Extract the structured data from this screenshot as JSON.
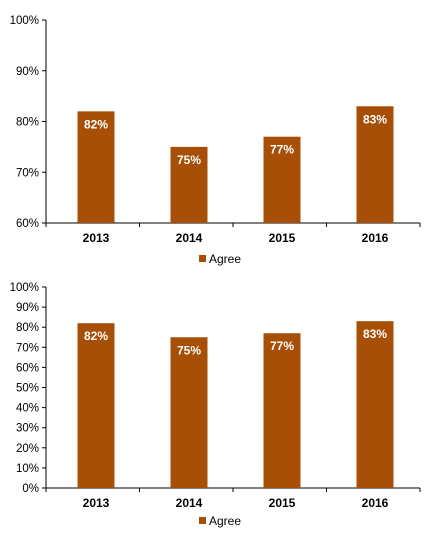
{
  "chart_data": [
    {
      "type": "bar",
      "categories": [
        "2013",
        "2014",
        "2015",
        "2016"
      ],
      "series": [
        {
          "name": "Agree",
          "values": [
            82,
            75,
            77,
            83
          ],
          "labels": [
            "82%",
            "75%",
            "77%",
            "83%"
          ]
        }
      ],
      "ylim": [
        60,
        100
      ],
      "yticks": [
        60,
        70,
        80,
        90,
        100
      ],
      "ytick_labels": [
        "60%",
        "70%",
        "80%",
        "90%",
        "100%"
      ],
      "grid": false,
      "legend_position": "bottom",
      "bar_color": "#a84f07"
    },
    {
      "type": "bar",
      "categories": [
        "2013",
        "2014",
        "2015",
        "2016"
      ],
      "series": [
        {
          "name": "Agree",
          "values": [
            82,
            75,
            77,
            83
          ],
          "labels": [
            "82%",
            "75%",
            "77%",
            "83%"
          ]
        }
      ],
      "ylim": [
        0,
        100
      ],
      "yticks": [
        0,
        10,
        20,
        30,
        40,
        50,
        60,
        70,
        80,
        90,
        100
      ],
      "ytick_labels": [
        "0%",
        "10%",
        "20%",
        "30%",
        "40%",
        "50%",
        "60%",
        "70%",
        "80%",
        "90%",
        "100%"
      ],
      "grid": false,
      "legend_position": "bottom",
      "bar_color": "#a84f07"
    }
  ]
}
